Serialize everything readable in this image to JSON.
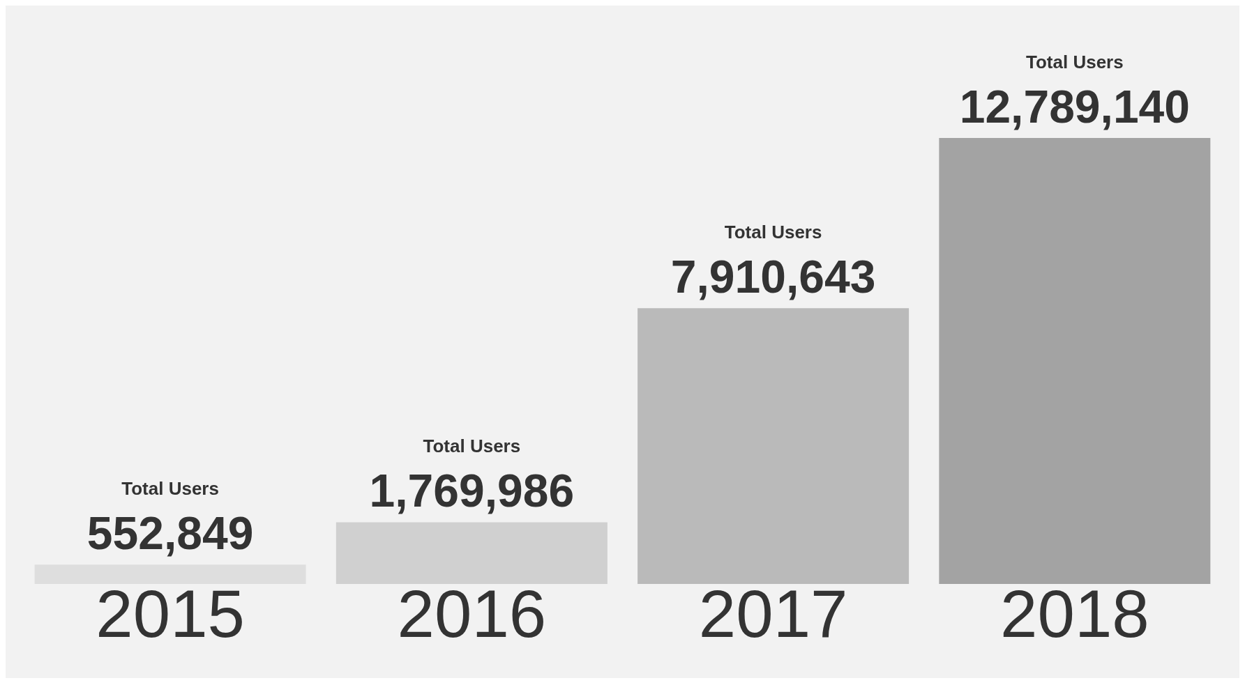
{
  "chart_data": {
    "type": "bar",
    "categories": [
      "2015",
      "2016",
      "2017",
      "2018"
    ],
    "values": [
      552849,
      1769986,
      7910643,
      12789140
    ],
    "colors": [
      "#dedede",
      "#d0d0d0",
      "#bababa",
      "#a3a3a3"
    ],
    "value_labels": [
      "552,849",
      "1,769,986",
      "7,910,643",
      "12,789,140"
    ],
    "annotations": [
      "Total Users",
      "Total Users",
      "Total Users",
      "Total Users"
    ],
    "grid": false,
    "legend": false
  }
}
